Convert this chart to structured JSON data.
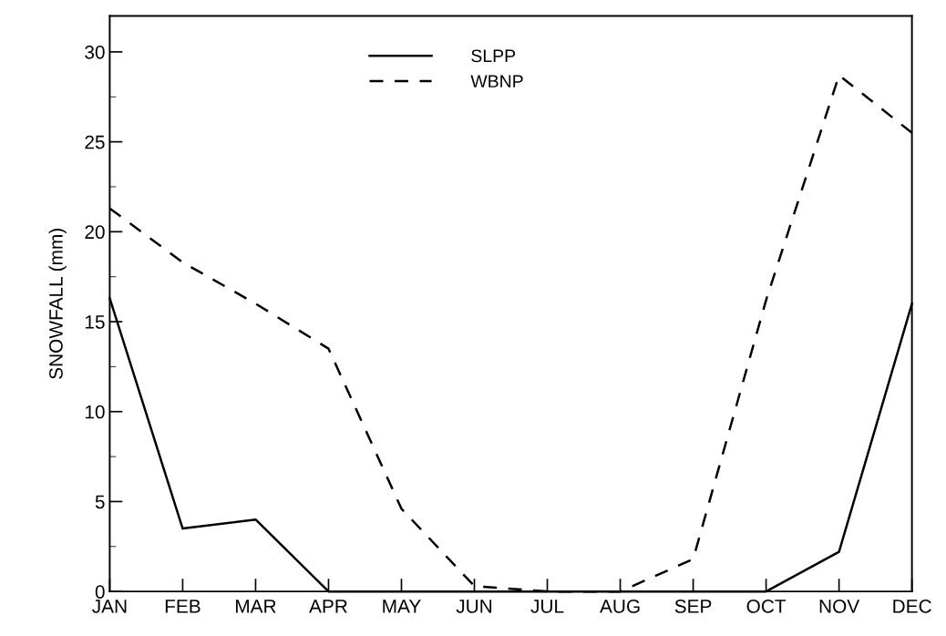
{
  "chart_data": {
    "type": "line",
    "ylabel": "SNOWFALL (mm)",
    "categories": [
      "JAN",
      "FEB",
      "MAR",
      "APR",
      "MAY",
      "JUN",
      "JUL",
      "AUG",
      "SEP",
      "OCT",
      "NOV",
      "DEC"
    ],
    "series": [
      {
        "name": "SLPP",
        "color": "#000000",
        "line_style": "solid",
        "values": [
          16.3,
          3.5,
          4.0,
          0,
          0,
          0,
          0,
          0,
          0,
          0,
          2.2,
          16.0
        ]
      },
      {
        "name": "WBNP",
        "color": "#000000",
        "line_style": "dashed",
        "values": [
          21.3,
          18.3,
          16.0,
          13.5,
          4.6,
          0.3,
          0,
          0,
          1.8,
          16.2,
          28.7,
          25.5
        ]
      }
    ],
    "ylim": [
      0,
      32
    ],
    "yticks": [
      0,
      5,
      10,
      15,
      20,
      25,
      30
    ],
    "grid": false,
    "legend": "top center",
    "marker": "none"
  }
}
